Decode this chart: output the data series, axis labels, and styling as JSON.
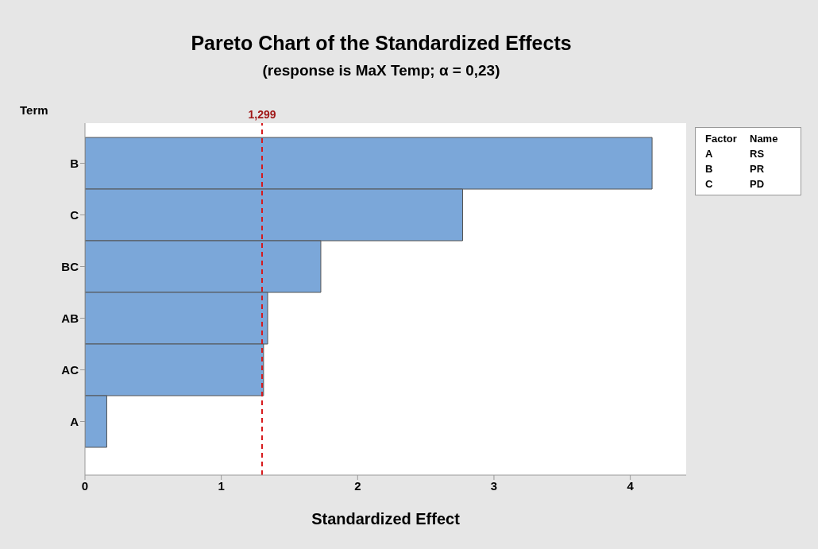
{
  "chart_data": {
    "type": "bar",
    "orientation": "horizontal",
    "title": "Pareto Chart of the Standardized Effects",
    "subtitle": "(response is MaX Temp; α = 0,23)",
    "xlabel": "Standardized Effect",
    "ylabel": "Term",
    "categories": [
      "B",
      "C",
      "BC",
      "AB",
      "AC",
      "A"
    ],
    "values": [
      4.16,
      2.77,
      1.73,
      1.34,
      1.31,
      0.16
    ],
    "color": "#7ba7d9",
    "xlim": [
      0,
      4.41
    ],
    "xticks": [
      0,
      1,
      2,
      3,
      4
    ],
    "ref_lines": [
      {
        "axis": "x",
        "value": 1.299,
        "label": "1,299",
        "color": "#d7191c",
        "line_style": "dashed"
      }
    ],
    "annotations": [
      "Factor",
      "Name",
      "A",
      "RS",
      "B",
      "PR",
      "C",
      "PD"
    ],
    "grid": false
  }
}
